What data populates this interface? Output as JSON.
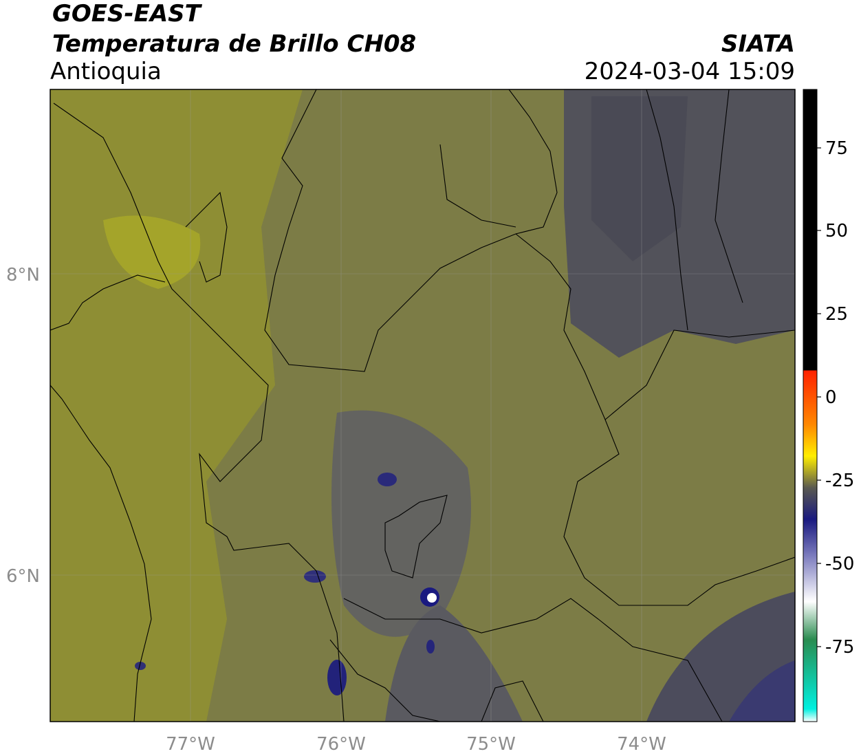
{
  "header": {
    "satellite": "GOES-EAST",
    "product": "Temperatura de Brillo CH08",
    "region": "Antioquia",
    "organization": "SIATA",
    "datetime": "2024-03-04 15:09"
  },
  "axes": {
    "lat_labels": [
      "8°N",
      "6°N"
    ],
    "lon_labels": [
      "77°W",
      "76°W",
      "75°W",
      "74°W"
    ]
  },
  "colorbar": {
    "ticks": [
      "75",
      "50",
      "25",
      "0",
      "-25",
      "-50",
      "-75"
    ],
    "colors": [
      "#00f0e0",
      "#2a8c50",
      "#ffffff",
      "#1a1a80",
      "#3a3a58",
      "#ffee00",
      "#ff8800",
      "#ff2200",
      "#000000"
    ]
  },
  "map": {
    "background_color": "#7a7a48",
    "features": [
      "department boundaries",
      "coastline",
      "cold cloud tops near 75.4°W 5.9°N"
    ]
  }
}
